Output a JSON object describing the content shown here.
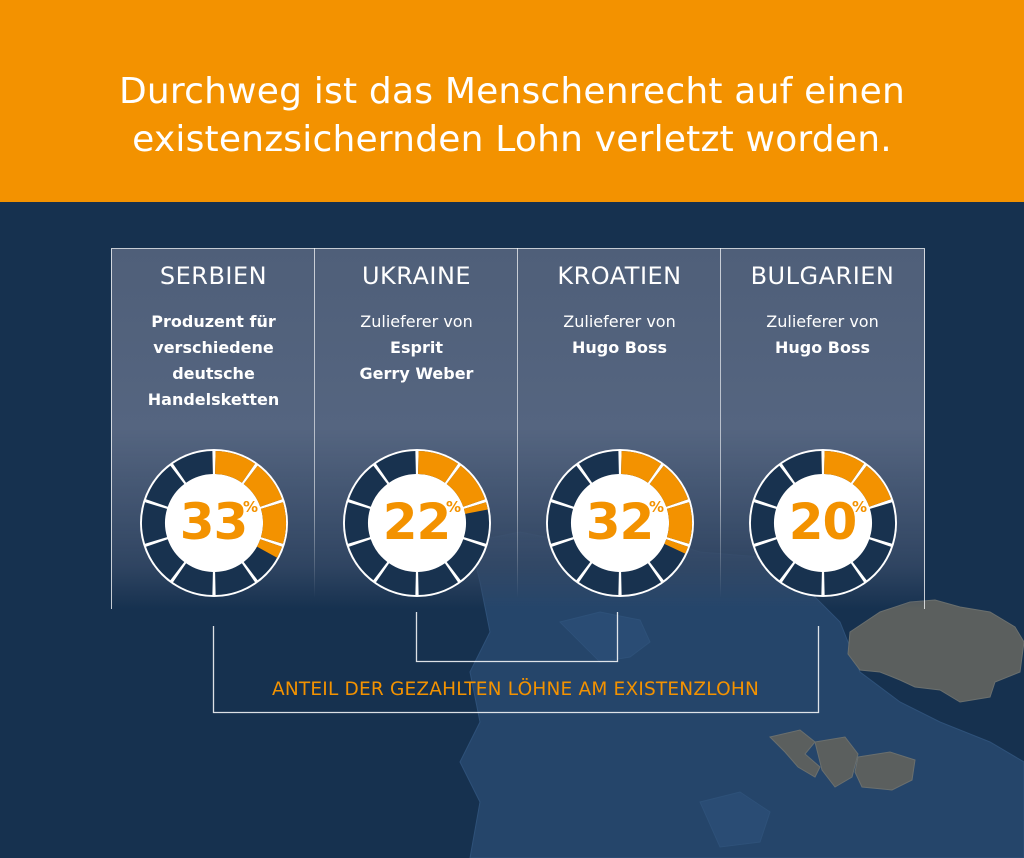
{
  "headline": {
    "line1": "Durchweg ist das Menschenrecht auf einen",
    "line2": "existenzsichernden Lohn verletzt worden."
  },
  "colors": {
    "header_bg": "#f39200",
    "page_bg": "#16314f",
    "accent_orange": "#f39200",
    "segment_dark": "#18324f",
    "map_highlight": "#5b5f5e",
    "map_land": "#25456a"
  },
  "panels": [
    {
      "country": "SERBIEN",
      "desc_lines": [
        {
          "text": "Produzent für",
          "bold": true
        },
        {
          "text": "verschiedene",
          "bold": true
        },
        {
          "text": "deutsche",
          "bold": true
        },
        {
          "text": "Handelsketten",
          "bold": true
        }
      ],
      "percent_label": "33",
      "percent_sign": "%"
    },
    {
      "country": "UKRAINE",
      "desc_lines": [
        {
          "text": "Zulieferer von",
          "bold": false
        },
        {
          "text": "Esprit",
          "bold": true
        },
        {
          "text": "Gerry Weber",
          "bold": true
        }
      ],
      "percent_label": "22",
      "percent_sign": "%"
    },
    {
      "country": "KROATIEN",
      "desc_lines": [
        {
          "text": "Zulieferer von",
          "bold": false
        },
        {
          "text": "Hugo Boss",
          "bold": true
        }
      ],
      "percent_label": "32",
      "percent_sign": "%"
    },
    {
      "country": "BULGARIEN",
      "desc_lines": [
        {
          "text": "Zulieferer von",
          "bold": false
        },
        {
          "text": "Hugo Boss",
          "bold": true
        }
      ],
      "percent_label": "20",
      "percent_sign": "%"
    }
  ],
  "footer_label": "ANTEIL DER GEZAHLTEN LÖHNE AM EXISTENZLOHN",
  "chart_data": {
    "type": "pie",
    "variant": "segmented-donut",
    "segments_total": 10,
    "unit": "%",
    "categories": [
      "SERBIEN",
      "UKRAINE",
      "KROATIEN",
      "BULGARIEN"
    ],
    "values": [
      33,
      22,
      32,
      20
    ],
    "title": "",
    "annotation": "ANTEIL DER GEZAHLTEN LÖHNE AM EXISTENZLOHN"
  }
}
